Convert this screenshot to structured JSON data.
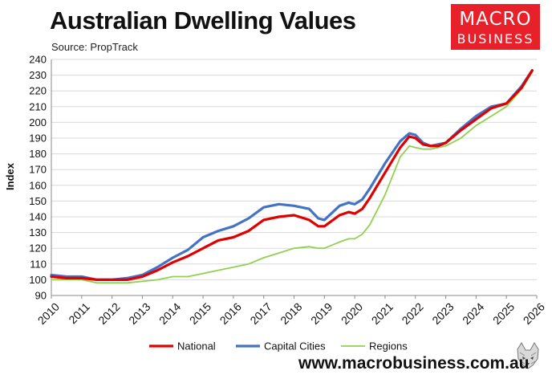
{
  "header": {
    "title": "Australian Dwelling Values",
    "source": "Source: PropTrack"
  },
  "logo": {
    "line1": "MACRO",
    "line2": "BUSINESS",
    "brand_color": "#e8202a",
    "mascot_icon": "wolf-icon"
  },
  "footer": {
    "website": "www.macrobusiness.com.au"
  },
  "chart_data": {
    "type": "line",
    "title": "Australian Dwelling Values",
    "xlabel": "",
    "ylabel": "Index",
    "xlim": [
      2010,
      2026
    ],
    "ylim": [
      90,
      240
    ],
    "yticks": [
      90,
      100,
      110,
      120,
      130,
      140,
      150,
      160,
      170,
      180,
      190,
      200,
      210,
      220,
      230,
      240
    ],
    "xticks": [
      "2010",
      "2011",
      "2012",
      "2013",
      "2014",
      "2015",
      "2016",
      "2017",
      "2018",
      "2019",
      "2020",
      "2021",
      "2022",
      "2023",
      "2024",
      "2025",
      "2026"
    ],
    "grid": true,
    "legend_position": "bottom",
    "series": [
      {
        "name": "National",
        "color": "#e00000",
        "x": [
          2010.0,
          2010.5,
          2011.0,
          2011.5,
          2012.0,
          2012.5,
          2013.0,
          2013.5,
          2014.0,
          2014.5,
          2015.0,
          2015.5,
          2016.0,
          2016.5,
          2017.0,
          2017.5,
          2018.0,
          2018.5,
          2018.8,
          2019.0,
          2019.5,
          2019.8,
          2020.0,
          2020.25,
          2020.5,
          2021.0,
          2021.5,
          2021.8,
          2022.0,
          2022.25,
          2022.5,
          2022.75,
          2023.0,
          2023.5,
          2024.0,
          2024.5,
          2025.0,
          2025.5,
          2025.85
        ],
        "values": [
          102,
          101,
          101,
          100,
          100,
          100,
          102,
          106,
          111,
          115,
          120,
          125,
          127,
          131,
          138,
          140,
          141,
          138,
          134,
          134,
          141,
          143,
          142,
          145,
          152,
          168,
          184,
          191,
          190,
          186,
          185,
          185,
          187,
          195,
          202,
          209,
          212,
          222,
          233
        ]
      },
      {
        "name": "Capital Cities",
        "color": "#4472c4",
        "x": [
          2010.0,
          2010.5,
          2011.0,
          2011.5,
          2012.0,
          2012.5,
          2013.0,
          2013.5,
          2014.0,
          2014.5,
          2015.0,
          2015.5,
          2016.0,
          2016.5,
          2017.0,
          2017.5,
          2018.0,
          2018.5,
          2018.8,
          2019.0,
          2019.5,
          2019.8,
          2020.0,
          2020.25,
          2020.5,
          2021.0,
          2021.5,
          2021.8,
          2022.0,
          2022.25,
          2022.5,
          2022.75,
          2023.0,
          2023.5,
          2024.0,
          2024.5,
          2025.0,
          2025.5,
          2025.85
        ],
        "values": [
          103,
          102,
          102,
          100,
          100,
          101,
          103,
          108,
          114,
          119,
          127,
          131,
          134,
          139,
          146,
          148,
          147,
          145,
          139,
          138,
          147,
          149,
          148,
          151,
          158,
          174,
          188,
          193,
          192,
          187,
          185,
          186,
          187,
          196,
          204,
          210,
          212,
          223,
          233
        ]
      },
      {
        "name": "Regions",
        "color": "#92d050",
        "x": [
          2010.0,
          2010.5,
          2011.0,
          2011.5,
          2012.0,
          2012.5,
          2013.0,
          2013.5,
          2014.0,
          2014.5,
          2015.0,
          2015.5,
          2016.0,
          2016.5,
          2017.0,
          2017.5,
          2018.0,
          2018.5,
          2018.8,
          2019.0,
          2019.5,
          2019.8,
          2020.0,
          2020.25,
          2020.5,
          2021.0,
          2021.5,
          2021.8,
          2022.0,
          2022.25,
          2022.5,
          2022.75,
          2023.0,
          2023.5,
          2024.0,
          2024.5,
          2025.0,
          2025.5,
          2025.85
        ],
        "values": [
          100,
          100,
          100,
          98,
          98,
          98,
          99,
          100,
          102,
          102,
          104,
          106,
          108,
          110,
          114,
          117,
          120,
          121,
          120,
          120,
          124,
          126,
          126,
          129,
          135,
          154,
          178,
          185,
          184,
          183,
          183,
          184,
          185,
          190,
          198,
          204,
          210,
          221,
          232
        ]
      }
    ]
  }
}
